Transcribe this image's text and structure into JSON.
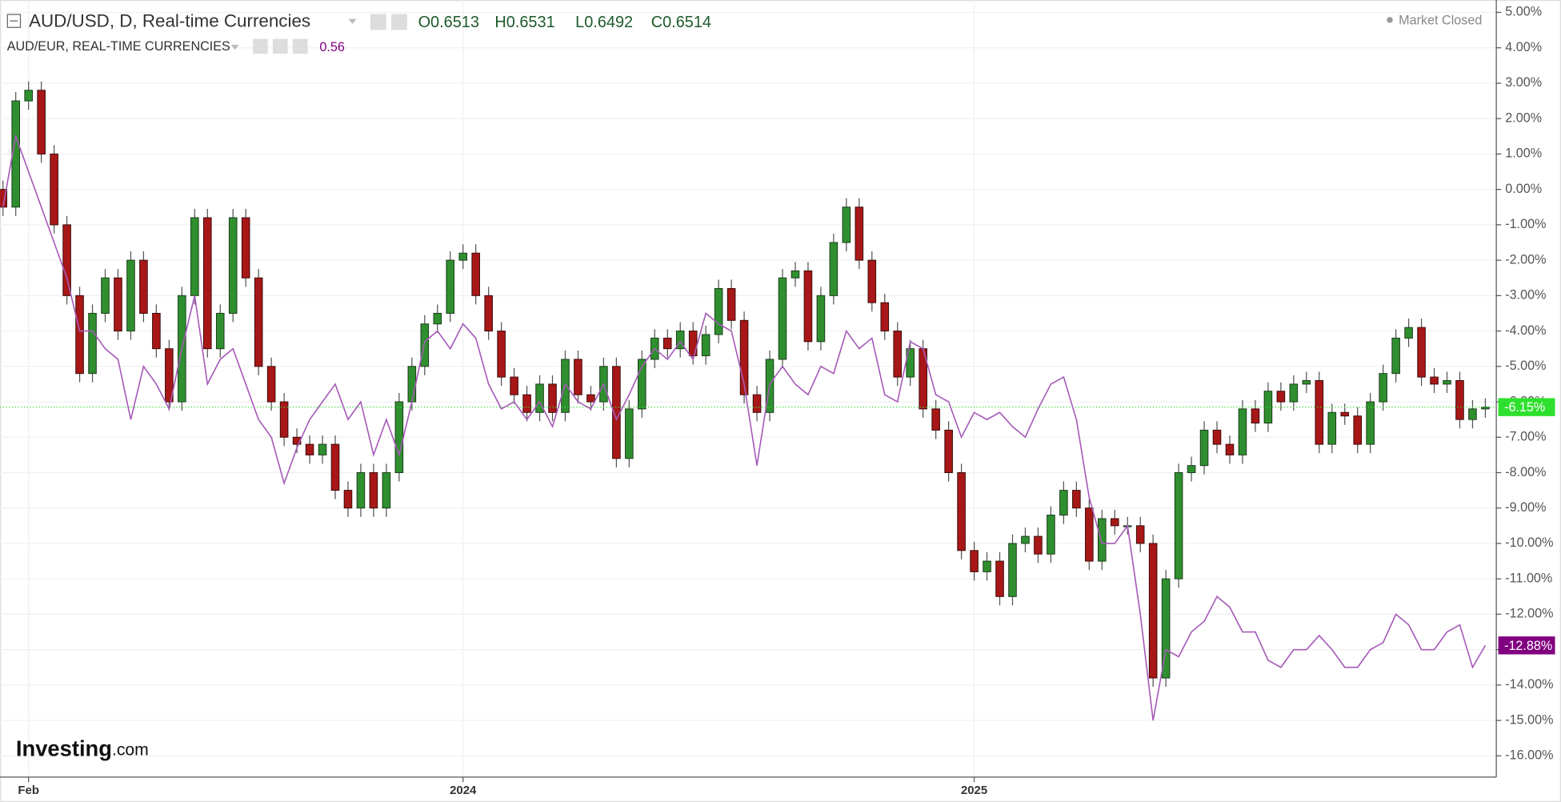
{
  "chart_data": {
    "type": "candlestick",
    "title": "AUD/USD, D, Real-time Currencies",
    "header": {
      "ohlc": [
        "O0.6513",
        "H0.6531",
        "L0.6492",
        "C0.6514"
      ],
      "status": "Market Closed",
      "logo": [
        "Investing",
        ".com"
      ]
    },
    "categories": [
      null,
      null,
      "Feb",
      null,
      null,
      null,
      null,
      null,
      null,
      null,
      null,
      null,
      null,
      null,
      null,
      null,
      null,
      null,
      null,
      null,
      null,
      null,
      null,
      null,
      null,
      null,
      null,
      null,
      null,
      null,
      null,
      null,
      null,
      null,
      null,
      null,
      "2024",
      null,
      null,
      null,
      null,
      null,
      null,
      null,
      null,
      null,
      null,
      null,
      null,
      null,
      null,
      null,
      null,
      null,
      null,
      null,
      null,
      null,
      null,
      null,
      null,
      null,
      null,
      null,
      null,
      null,
      null,
      null,
      null,
      null,
      null,
      null,
      null,
      null,
      null,
      null,
      "2025",
      null,
      null,
      null,
      null,
      null,
      null,
      null,
      null,
      null,
      null,
      null,
      null,
      null,
      null,
      null,
      null,
      null,
      null,
      null,
      null,
      null,
      null,
      null,
      null,
      null,
      null,
      null,
      null,
      null,
      null,
      null,
      null,
      null,
      null,
      null,
      null,
      null,
      null,
      null,
      null
    ],
    "series": [
      {
        "type": "candlestick",
        "up_color": "#2f8f2f",
        "down_color": "#a81717",
        "last_value_label": "-6.15%",
        "last_color": "#2ee02e",
        "open": [
          0,
          -0.5,
          2.5,
          2.8,
          1,
          -1,
          -3,
          -5.2,
          -3.5,
          -2.5,
          -4,
          -2,
          -3.5,
          -4.5,
          -6,
          -3,
          -0.8,
          -4.5,
          -3.5,
          -0.8,
          -2.5,
          -5,
          -6,
          -7,
          -7.2,
          -7.5,
          -7.2,
          -8.5,
          -9,
          -8,
          -9,
          -8,
          -6,
          -5,
          -3.8,
          -3.5,
          -2,
          -1.8,
          -3,
          -4,
          -5.3,
          -5.8,
          -6.3,
          -5.5,
          -6.3,
          -4.8,
          -5.8,
          -6,
          -5,
          -7.6,
          -6.2,
          -4.8,
          -4.2,
          -4.5,
          -4,
          -4.7,
          -4.1,
          -2.8,
          -3.7,
          -5.8,
          -6.3,
          -4.8,
          -2.5,
          -2.3,
          -4.3,
          -3,
          -1.5,
          -0.5,
          -2,
          -3.2,
          -4,
          -5.3,
          -4.5,
          -6.2,
          -6.8,
          -8,
          -10.2,
          -10.8,
          -10.5,
          -11.5,
          -10,
          -9.8,
          -10.3,
          -9.2,
          -8.5,
          -9,
          -10.5,
          -9.3,
          -9.5,
          -9.5,
          -10,
          -13.8,
          -11,
          -8,
          -7.8,
          -6.8,
          -7.2,
          -7.5,
          -6.2,
          -6.6,
          -5.7,
          -6,
          -5.5,
          -5.4,
          -7.2,
          -6.3,
          -6.4,
          -7.2,
          -6,
          -5.2,
          -4.2,
          -3.9,
          -5.3,
          -5.5,
          -5.4,
          -6.5,
          -6.2
        ],
        "high": [
          0.25,
          2.75,
          3.05,
          3.05,
          1.25,
          -0.75,
          -2.75,
          -3.25,
          -2.25,
          -2.25,
          -1.75,
          -1.75,
          -3.25,
          -4.25,
          -2.75,
          -0.55,
          -0.55,
          -3.25,
          -0.55,
          -0.55,
          -2.25,
          -4.75,
          -5.75,
          -6.75,
          -6.95,
          -6.95,
          -6.95,
          -8.25,
          -7.75,
          -7.75,
          -7.75,
          -5.75,
          -4.75,
          -3.55,
          -3.25,
          -1.75,
          -1.55,
          -1.55,
          -2.75,
          -3.75,
          -5.05,
          -5.55,
          -5.25,
          -5.25,
          -4.55,
          -4.55,
          -5.55,
          -4.75,
          -4.75,
          -5.95,
          -4.55,
          -3.95,
          -3.95,
          -3.75,
          -3.75,
          -3.85,
          -2.55,
          -2.55,
          -3.45,
          -5.55,
          -4.55,
          -2.25,
          -2.05,
          -2.05,
          -2.75,
          -1.25,
          -0.25,
          -0.25,
          -1.75,
          -2.95,
          -3.75,
          -4.25,
          -4.25,
          -5.95,
          -6.55,
          -7.75,
          -9.95,
          -10.25,
          -10.25,
          -9.75,
          -9.55,
          -9.55,
          -8.95,
          -8.25,
          -8.25,
          -8.75,
          -9.05,
          -9.05,
          -9.25,
          -9.25,
          -9.75,
          -10.75,
          -7.75,
          -7.55,
          -6.55,
          -6.55,
          -6.95,
          -5.95,
          -5.95,
          -5.45,
          -5.45,
          -5.25,
          -5.15,
          -5.15,
          -6.05,
          -6.05,
          -6.15,
          -5.75,
          -4.95,
          -3.95,
          -3.65,
          -3.65,
          -5.05,
          -5.15,
          -5.15,
          -5.95,
          -5.9
        ],
        "low": [
          -0.75,
          -0.75,
          2.25,
          0.75,
          -1.25,
          -3.25,
          -5.45,
          -5.45,
          -3.75,
          -4.25,
          -4.25,
          -3.75,
          -4.75,
          -6.25,
          -6.25,
          -3.25,
          -4.75,
          -4.75,
          -3.75,
          -2.75,
          -5.25,
          -6.25,
          -7.25,
          -7.45,
          -7.75,
          -7.75,
          -8.75,
          -9.25,
          -9.25,
          -9.25,
          -9.25,
          -8.25,
          -6.25,
          -5.25,
          -4.05,
          -3.75,
          -2.25,
          -3.25,
          -4.25,
          -5.55,
          -6.05,
          -6.55,
          -6.55,
          -6.55,
          -6.55,
          -6.05,
          -6.25,
          -6.25,
          -7.85,
          -7.85,
          -6.45,
          -5.05,
          -4.75,
          -4.75,
          -4.95,
          -4.95,
          -4.35,
          -3.95,
          -6.05,
          -6.55,
          -6.55,
          -5.05,
          -2.75,
          -4.55,
          -4.55,
          -3.25,
          -1.75,
          -2.25,
          -3.45,
          -4.25,
          -5.55,
          -5.55,
          -6.45,
          -7.05,
          -8.25,
          -10.45,
          -11.05,
          -11.05,
          -11.75,
          -11.75,
          -10.25,
          -10.55,
          -10.55,
          -9.45,
          -9.25,
          -10.75,
          -10.75,
          -9.75,
          -9.75,
          -10.25,
          -14.05,
          -14.05,
          -11.25,
          -8.25,
          -8.05,
          -7.45,
          -7.75,
          -7.75,
          -6.85,
          -6.85,
          -6.25,
          -6.25,
          -5.75,
          -7.45,
          -7.45,
          -6.65,
          -7.45,
          -7.45,
          -6.25,
          -5.45,
          -4.45,
          -5.55,
          -5.75,
          -5.75,
          -6.75,
          -6.75,
          -6.45
        ],
        "close": [
          -0.5,
          2.5,
          2.8,
          1,
          -1,
          -3,
          -5.2,
          -3.5,
          -2.5,
          -4,
          -2,
          -3.5,
          -4.5,
          -6,
          -3,
          -0.8,
          -4.5,
          -3.5,
          -0.8,
          -2.5,
          -5,
          -6,
          -7,
          -7.2,
          -7.5,
          -7.2,
          -8.5,
          -9,
          -8,
          -9,
          -8,
          -6,
          -5,
          -3.8,
          -3.5,
          -2,
          -1.8,
          -3,
          -4,
          -5.3,
          -5.8,
          -6.3,
          -5.5,
          -6.3,
          -4.8,
          -5.8,
          -6,
          -5,
          -7.6,
          -6.2,
          -4.8,
          -4.2,
          -4.5,
          -4,
          -4.7,
          -4.1,
          -2.8,
          -3.7,
          -5.8,
          -6.3,
          -4.8,
          -2.5,
          -2.3,
          -4.3,
          -3,
          -1.5,
          -0.5,
          -2,
          -3.2,
          -4,
          -5.3,
          -4.5,
          -6.2,
          -6.8,
          -8,
          -10.2,
          -10.8,
          -10.5,
          -11.5,
          -10,
          -9.8,
          -10.3,
          -9.2,
          -8.5,
          -9,
          -10.5,
          -9.3,
          -9.5,
          -9.5,
          -10,
          -13.8,
          -11,
          -8,
          -7.8,
          -6.8,
          -7.2,
          -7.5,
          -6.2,
          -6.6,
          -5.7,
          -6,
          -5.5,
          -5.4,
          -7.2,
          -6.3,
          -6.4,
          -7.2,
          -6,
          -5.2,
          -4.2,
          -3.9,
          -5.3,
          -5.5,
          -5.4,
          -6.5,
          -6.2,
          -6.15
        ]
      },
      {
        "type": "line",
        "name": "AUD/EUR, REAL-TIME CURRENCIES",
        "current": "0.56",
        "color": "#a65ab8",
        "last_value_label": "-12.88%",
        "last_color": "#800080",
        "values": [
          -0.5,
          1.5,
          0.5,
          -0.5,
          -1.5,
          -2.5,
          -4,
          -4,
          -4.5,
          -4.8,
          -6.5,
          -5,
          -5.5,
          -6.2,
          -4.5,
          -3,
          -5.5,
          -4.8,
          -4.5,
          -5.5,
          -6.5,
          -7,
          -8.3,
          -7.3,
          -6.5,
          -6,
          -5.5,
          -6.5,
          -6,
          -7.5,
          -6.5,
          -7.5,
          -6,
          -4.3,
          -4,
          -4.5,
          -3.8,
          -4.2,
          -5.5,
          -6.2,
          -6,
          -6.5,
          -6,
          -6.7,
          -5.5,
          -6,
          -6.2,
          -5.5,
          -6.5,
          -5.8,
          -5,
          -4.5,
          -4.8,
          -4.3,
          -4.8,
          -3.5,
          -3.8,
          -4,
          -5.5,
          -7.8,
          -5.5,
          -5,
          -5.5,
          -5.8,
          -5,
          -5.2,
          -4,
          -4.5,
          -4.2,
          -5.8,
          -6,
          -4.3,
          -4.5,
          -5.8,
          -6,
          -7,
          -6.3,
          -6.5,
          -6.3,
          -6.7,
          -7,
          -6.2,
          -5.5,
          -5.3,
          -6.5,
          -8.7,
          -10,
          -10,
          -9.5,
          -12,
          -15,
          -13,
          -13.2,
          -12.5,
          -12.2,
          -11.5,
          -11.8,
          -12.5,
          -12.5,
          -13.3,
          -13.5,
          -13,
          -13,
          -12.6,
          -13,
          -13.5,
          -13.5,
          -13,
          -12.8,
          -12,
          -12.3,
          -13,
          -13,
          -12.5,
          -12.3,
          -13.5,
          -12.88
        ]
      }
    ],
    "ylim": [
      -16.6,
      5.35
    ],
    "yticks": [
      {
        "value": 5,
        "label": "5.00%"
      },
      {
        "value": 4,
        "label": "4.00%"
      },
      {
        "value": 3,
        "label": "3.00%"
      },
      {
        "value": 2,
        "label": "2.00%"
      },
      {
        "value": 1,
        "label": "1.00%"
      },
      {
        "value": 0,
        "label": "0.00%"
      },
      {
        "value": -1,
        "label": "-1.00%"
      },
      {
        "value": -2,
        "label": "-2.00%"
      },
      {
        "value": -3,
        "label": "-3.00%"
      },
      {
        "value": -4,
        "label": "-4.00%"
      },
      {
        "value": -5,
        "label": "-5.00%"
      },
      {
        "value": -6,
        "label": "-6.00%"
      },
      {
        "value": -7,
        "label": "-7.00%"
      },
      {
        "value": -8,
        "label": "-8.00%"
      },
      {
        "value": -9,
        "label": "-9.00%"
      },
      {
        "value": -10,
        "label": "-10.00%"
      },
      {
        "value": -11,
        "label": "-11.00%"
      },
      {
        "value": -12,
        "label": "-12.00%"
      },
      {
        "value": -13,
        "label": "-13.00%"
      },
      {
        "value": -14,
        "label": "-14.00%"
      },
      {
        "value": -15,
        "label": "-15.00%"
      },
      {
        "value": -16,
        "label": "-16.00%"
      }
    ],
    "grid": true
  }
}
